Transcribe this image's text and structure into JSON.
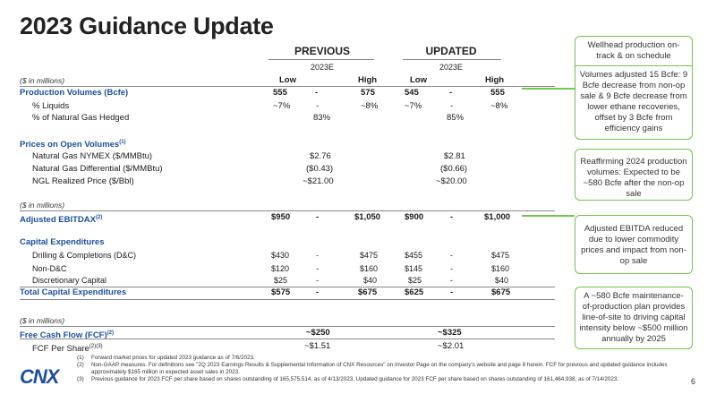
{
  "title": "2023 Guidance Update",
  "header": {
    "previous": "PREVIOUS",
    "updated": "UPDATED",
    "year_prev": "2023E",
    "year_upd": "2023E",
    "units": "($ in millions)",
    "low": "Low",
    "high": "High"
  },
  "rows": {
    "prod": {
      "label": "Production Volumes (Bcfe)",
      "pl": "555",
      "pd": "-",
      "ph": "575",
      "ul": "545",
      "ud": "-",
      "uh": "555"
    },
    "liq": {
      "label": "% Liquids",
      "pl": "~7%",
      "pd": "-",
      "ph": "~8%",
      "ul": "~7%",
      "ud": "-",
      "uh": "~8%"
    },
    "hedged": {
      "label": "% of Natural Gas Hedged",
      "p": "83%",
      "u": "85%"
    },
    "prices_label": "Prices on Open Volumes",
    "prices_sup": "(1)",
    "nymex": {
      "label": "Natural Gas NYMEX ($/MMBtu)",
      "p": "$2.76",
      "u": "$2.81"
    },
    "diff": {
      "label": "Natural Gas Differential ($/MMBtu)",
      "p": "($0.43)",
      "u": "($0.66)"
    },
    "ngl": {
      "label": "NGL Realized Price ($/Bbl)",
      "p": "~$21.00",
      "u": "~$20.00"
    },
    "units2": "($ in millions)",
    "ebitdax": {
      "label": "Adjusted EBITDAX",
      "sup": "(2)",
      "pl": "$950",
      "pd": "-",
      "ph": "$1,050",
      "ul": "$900",
      "ud": "-",
      "uh": "$1,000"
    },
    "capex_label": "Capital Expenditures",
    "dc": {
      "label": "Drilling & Completions (D&C)",
      "pl": "$430",
      "pd": "-",
      "ph": "$475",
      "ul": "$455",
      "ud": "-",
      "uh": "$475"
    },
    "nondc": {
      "label": "Non-D&C",
      "pl": "$120",
      "pd": "-",
      "ph": "$160",
      "ul": "$145",
      "ud": "-",
      "uh": "$160"
    },
    "disc": {
      "label": "Discretionary Capital",
      "pl": "$25",
      "pd": "-",
      "ph": "$40",
      "ul": "$25",
      "ud": "-",
      "uh": "$40"
    },
    "total": {
      "label": "Total Capital Expenditures",
      "pl": "$575",
      "pd": "-",
      "ph": "$675",
      "ul": "$625",
      "ud": "-",
      "uh": "$675"
    },
    "units3": "($ in millions)",
    "fcf": {
      "label": "Free Cash Flow (FCF)",
      "sup": "(2)",
      "p": "~$250",
      "u": "~$325"
    },
    "fcfps": {
      "label": "FCF Per Share",
      "sup": "(2)(3)",
      "p": "~$1.51",
      "u": "~$2.01"
    }
  },
  "callouts": {
    "c1a": "Wellhead production on-track & on schedule",
    "c1b": "Volumes adjusted 15 Bcfe: 9 Bcfe decrease from non-op sale & 9 Bcfe decrease from lower ethane recoveries, offset by 3 Bcfe from efficiency gains",
    "c2": "Reaffirming 2024 production volumes: Expected to be ~580 Bcfe after the non-op sale",
    "c3": "Adjusted EBITDA reduced due to lower commodity prices and impact from non-op sale",
    "c4": "A ~580 Bcfe maintenance-of-production plan provides line-of-site to driving capital intensity below ~$500 million annually by 2025"
  },
  "footnotes": [
    {
      "n": "(1)",
      "t": "Forward market prices for updated 2023 guidance as of 7/6/2023."
    },
    {
      "n": "(2)",
      "t": "Non-GAAP measures. For definitions see \"2Q 2023 Earnings Results & Supplemental Information of CNX Resources\" on Investor Page on the company's website and page 8 herein. FCF for previous and updated guidance includes approximately $165 million in expected asset sales in 2023."
    },
    {
      "n": "(3)",
      "t": "Previous guidance for 2023 FCF per share based on shares outstanding of 165,575,514, as of 4/13/2023. Updated guidance for 2023 FCF per share based on shares outstanding of 161,464,938, as of 7/14/2023."
    }
  ],
  "logo": "CNX",
  "page_number": "6"
}
